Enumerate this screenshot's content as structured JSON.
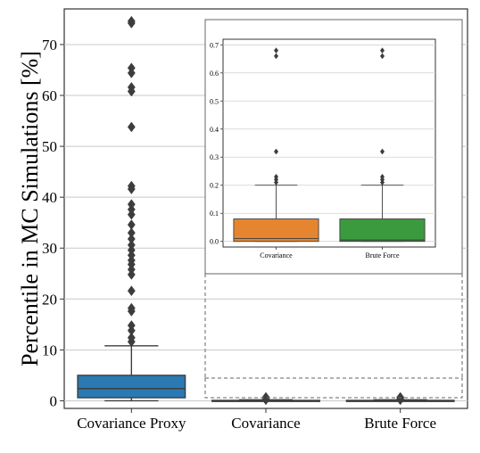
{
  "chart_data": [
    {
      "type": "box",
      "ylabel": "Percentile in MC Simulations [%]",
      "xlabel": "",
      "title": "",
      "ylim": [
        -1.5,
        77
      ],
      "yticks": [
        0,
        10,
        20,
        30,
        40,
        50,
        60,
        70
      ],
      "grid": "horizontal",
      "categories": [
        "Covariance Proxy",
        "Covariance",
        "Brute Force"
      ],
      "series": [
        {
          "category": "Covariance Proxy",
          "color": "#2a79b3",
          "whisker_low": 0.0,
          "q1": 0.6,
          "median": 2.4,
          "q3": 5.0,
          "whisker_high": 10.8,
          "outliers": [
            11.6,
            12.4,
            13.8,
            14.8,
            17.6,
            18.2,
            21.6,
            24.8,
            25.8,
            26.8,
            27.6,
            28.6,
            29.6,
            30.6,
            31.8,
            33.0,
            34.6,
            36.6,
            37.6,
            38.6,
            41.6,
            42.2,
            53.8,
            60.8,
            61.6,
            64.4,
            65.4,
            74.2,
            74.6
          ]
        },
        {
          "category": "Covariance",
          "color": "#e6852f",
          "whisker_low": 0.0,
          "q1": 0.0,
          "median": 0.01,
          "q3": 0.08,
          "whisker_high": 0.2,
          "outliers": [
            0.21,
            0.22,
            0.23,
            0.32,
            0.66,
            0.68
          ]
        },
        {
          "category": "Brute Force",
          "color": "#3b9a3e",
          "whisker_low": 0.0,
          "q1": 0.0,
          "median": 0.005,
          "q3": 0.08,
          "whisker_high": 0.2,
          "outliers": [
            0.21,
            0.22,
            0.23,
            0.32,
            0.66,
            0.68
          ]
        }
      ]
    },
    {
      "type": "box",
      "inset": true,
      "ylim": [
        -0.02,
        0.72
      ],
      "yticks": [
        "0.0",
        "0.1",
        "0.2",
        "0.3",
        "0.4",
        "0.5",
        "0.6",
        "0.7"
      ],
      "categories": [
        "Covariance",
        "Brute Force"
      ],
      "grid": "horizontal"
    }
  ]
}
